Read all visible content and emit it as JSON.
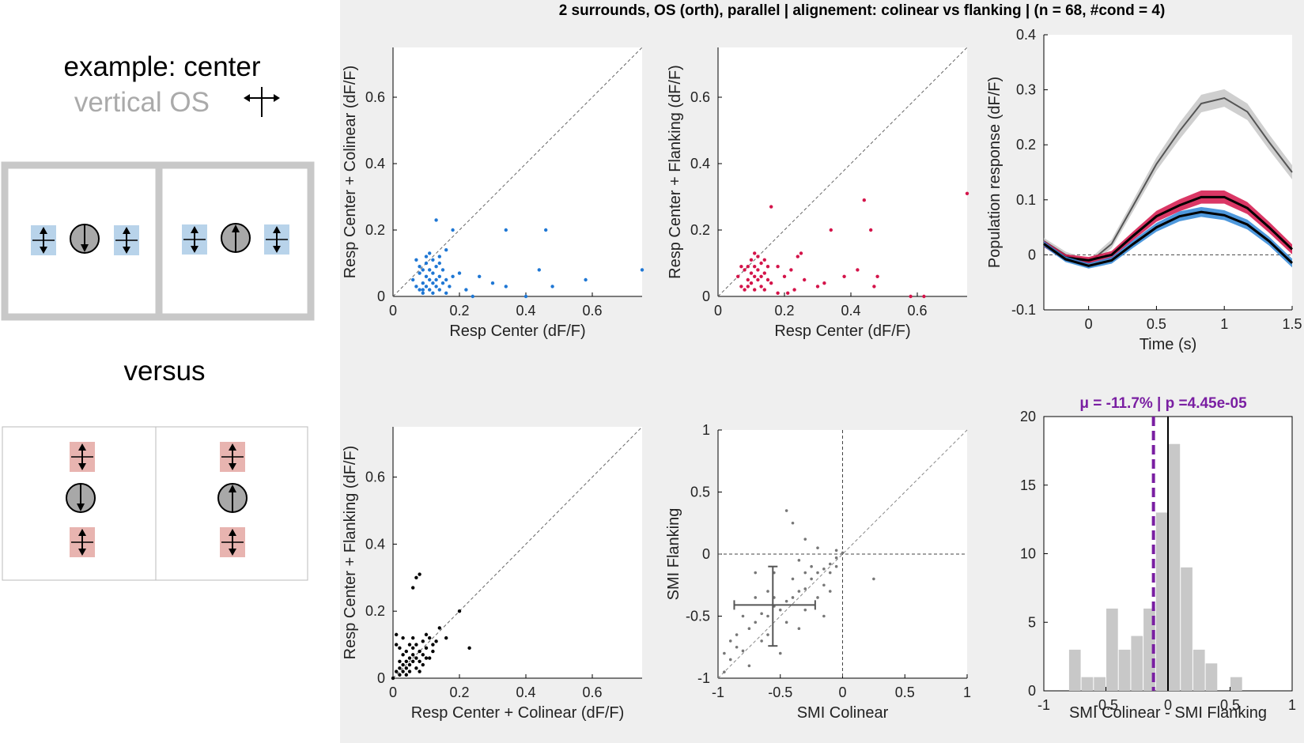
{
  "figure_title": "2 surrounds, OS (orth), parallel | alignement: colinear vs flanking | (n = 68, #cond = 4)",
  "legend": {
    "example_line1": "example: center",
    "example_line2": "vertical OS",
    "versus": "versus"
  },
  "colors": {
    "colinear": "#1f77d4",
    "flanking": "#d4144a",
    "neutral": "#000000",
    "highlight": "#7a1fa2",
    "hist_bar": "#c8c8c8",
    "blue_patch": "#b8d3ea",
    "red_patch": "#e8b4b0"
  },
  "chart_data": [
    {
      "type": "scatter",
      "id": "colinear_scatter",
      "xlabel": "Resp Center (dF/F)",
      "ylabel": "Resp Center + Colinear (dF/F)",
      "xlim": [
        0,
        0.75
      ],
      "ylim": [
        0,
        0.75
      ],
      "xticks": [
        "0",
        "0.2",
        "0.4",
        "0.6"
      ],
      "yticks": [
        "0",
        "0.2",
        "0.4",
        "0.6"
      ],
      "diagonal": true,
      "points": [
        [
          0.06,
          0.05
        ],
        [
          0.07,
          0.03
        ],
        [
          0.08,
          0.07
        ],
        [
          0.08,
          0.02
        ],
        [
          0.09,
          0.04
        ],
        [
          0.09,
          0.08
        ],
        [
          0.09,
          0.01
        ],
        [
          0.1,
          0.06
        ],
        [
          0.1,
          0.03
        ],
        [
          0.1,
          0.1
        ],
        [
          0.11,
          0.05
        ],
        [
          0.11,
          0.02
        ],
        [
          0.11,
          0.08
        ],
        [
          0.12,
          0.04
        ],
        [
          0.12,
          0.07
        ],
        [
          0.12,
          0.01
        ],
        [
          0.13,
          0.09
        ],
        [
          0.13,
          0.05
        ],
        [
          0.13,
          0.03
        ],
        [
          0.14,
          0.06
        ],
        [
          0.14,
          0.02
        ],
        [
          0.14,
          0.1
        ],
        [
          0.15,
          0.04
        ],
        [
          0.15,
          0.08
        ],
        [
          0.16,
          0.05
        ],
        [
          0.16,
          0.01
        ],
        [
          0.17,
          0.03
        ],
        [
          0.18,
          0.06
        ],
        [
          0.13,
          0.23
        ],
        [
          0.18,
          0.2
        ],
        [
          0.1,
          0.12
        ],
        [
          0.12,
          0.11
        ],
        [
          0.08,
          0.09
        ],
        [
          0.16,
          0.14
        ],
        [
          0.2,
          0.07
        ],
        [
          0.22,
          0.02
        ],
        [
          0.24,
          0.0
        ],
        [
          0.26,
          0.06
        ],
        [
          0.3,
          0.04
        ],
        [
          0.34,
          0.03
        ],
        [
          0.34,
          0.2
        ],
        [
          0.4,
          0.0
        ],
        [
          0.44,
          0.08
        ],
        [
          0.46,
          0.2
        ],
        [
          0.48,
          0.03
        ],
        [
          0.58,
          0.05
        ],
        [
          0.75,
          0.08
        ],
        [
          0.07,
          0.11
        ],
        [
          0.11,
          0.13
        ],
        [
          0.09,
          0.02
        ],
        [
          0.14,
          0.12
        ]
      ]
    },
    {
      "type": "scatter",
      "id": "flanking_scatter",
      "xlabel": "Resp Center (dF/F)",
      "ylabel": "Resp Center + Flanking (dF/F)",
      "xlim": [
        0,
        0.75
      ],
      "ylim": [
        0,
        0.75
      ],
      "xticks": [
        "0",
        "0.2",
        "0.4",
        "0.6"
      ],
      "yticks": [
        "0",
        "0.2",
        "0.4",
        "0.6"
      ],
      "diagonal": true,
      "points": [
        [
          0.06,
          0.06
        ],
        [
          0.07,
          0.03
        ],
        [
          0.08,
          0.08
        ],
        [
          0.08,
          0.02
        ],
        [
          0.09,
          0.05
        ],
        [
          0.09,
          0.09
        ],
        [
          0.1,
          0.04
        ],
        [
          0.1,
          0.07
        ],
        [
          0.1,
          0.11
        ],
        [
          0.11,
          0.06
        ],
        [
          0.11,
          0.02
        ],
        [
          0.11,
          0.09
        ],
        [
          0.12,
          0.05
        ],
        [
          0.12,
          0.08
        ],
        [
          0.12,
          0.12
        ],
        [
          0.13,
          0.1
        ],
        [
          0.13,
          0.06
        ],
        [
          0.13,
          0.03
        ],
        [
          0.14,
          0.07
        ],
        [
          0.14,
          0.02
        ],
        [
          0.14,
          0.11
        ],
        [
          0.15,
          0.05
        ],
        [
          0.15,
          0.09
        ],
        [
          0.16,
          0.04
        ],
        [
          0.16,
          0.27
        ],
        [
          0.18,
          0.01
        ],
        [
          0.2,
          0.06
        ],
        [
          0.22,
          0.08
        ],
        [
          0.24,
          0.12
        ],
        [
          0.25,
          0.13
        ],
        [
          0.26,
          0.05
        ],
        [
          0.3,
          0.03
        ],
        [
          0.32,
          0.04
        ],
        [
          0.34,
          0.2
        ],
        [
          0.38,
          0.06
        ],
        [
          0.42,
          0.08
        ],
        [
          0.44,
          0.29
        ],
        [
          0.46,
          0.2
        ],
        [
          0.48,
          0.06
        ],
        [
          0.47,
          0.03
        ],
        [
          0.58,
          0.0
        ],
        [
          0.62,
          0.0
        ],
        [
          0.75,
          0.31
        ],
        [
          0.07,
          0.09
        ],
        [
          0.11,
          0.13
        ],
        [
          0.09,
          0.03
        ],
        [
          0.18,
          0.09
        ],
        [
          0.21,
          0.01
        ],
        [
          0.23,
          0.02
        ]
      ]
    },
    {
      "type": "line",
      "id": "population_timecourse",
      "xlabel": "Time (s)",
      "ylabel": "Population response (dF/F)",
      "xlim": [
        -0.33,
        1.5
      ],
      "ylim": [
        -0.1,
        0.4
      ],
      "xticks": [
        "0",
        "0.5",
        "1",
        "1.5"
      ],
      "yticks": [
        "-0.1",
        "0",
        "0.1",
        "0.2",
        "0.3",
        "0.4"
      ],
      "x": [
        -0.33,
        -0.17,
        0,
        0.17,
        0.33,
        0.5,
        0.67,
        0.83,
        1,
        1.17,
        1.33,
        1.5
      ],
      "series": [
        {
          "color": "gray",
          "values": [
            0.025,
            0.0,
            -0.015,
            0.02,
            0.09,
            0.165,
            0.225,
            0.275,
            0.285,
            0.26,
            0.205,
            0.15
          ],
          "sem": [
            0.006,
            0.006,
            0.006,
            0.008,
            0.01,
            0.012,
            0.015,
            0.016,
            0.016,
            0.015,
            0.014,
            0.013
          ]
        },
        {
          "color": "red",
          "values": [
            0.02,
            -0.005,
            -0.01,
            0.0,
            0.035,
            0.07,
            0.09,
            0.105,
            0.105,
            0.085,
            0.05,
            0.01
          ],
          "sem": [
            0.006,
            0.006,
            0.006,
            0.007,
            0.008,
            0.01,
            0.011,
            0.012,
            0.012,
            0.011,
            0.01,
            0.009
          ]
        },
        {
          "color": "blue",
          "values": [
            0.02,
            -0.008,
            -0.02,
            -0.01,
            0.02,
            0.05,
            0.07,
            0.078,
            0.072,
            0.055,
            0.025,
            -0.015
          ],
          "sem": [
            0.005,
            0.005,
            0.005,
            0.006,
            0.007,
            0.008,
            0.009,
            0.009,
            0.009,
            0.009,
            0.008,
            0.008
          ]
        }
      ],
      "zero_line": true
    },
    {
      "type": "scatter",
      "id": "colinear_vs_flanking",
      "xlabel": "Resp Center + Colinear (dF/F)",
      "ylabel": "Resp Center + Flanking (dF/F)",
      "xlim": [
        0,
        0.75
      ],
      "ylim": [
        0,
        0.75
      ],
      "xticks": [
        "0",
        "0.2",
        "0.4",
        "0.6"
      ],
      "yticks": [
        "0",
        "0.2",
        "0.4",
        "0.6"
      ],
      "diagonal": true,
      "points": [
        [
          0.0,
          0.0
        ],
        [
          0.01,
          0.02
        ],
        [
          0.01,
          0.13
        ],
        [
          0.01,
          0.1
        ],
        [
          0.02,
          0.03
        ],
        [
          0.02,
          0.05
        ],
        [
          0.02,
          0.01
        ],
        [
          0.03,
          0.04
        ],
        [
          0.03,
          0.07
        ],
        [
          0.03,
          0.02
        ],
        [
          0.04,
          0.05
        ],
        [
          0.04,
          0.03
        ],
        [
          0.04,
          0.08
        ],
        [
          0.05,
          0.04
        ],
        [
          0.05,
          0.06
        ],
        [
          0.05,
          0.02
        ],
        [
          0.06,
          0.07
        ],
        [
          0.06,
          0.05
        ],
        [
          0.06,
          0.09
        ],
        [
          0.07,
          0.06
        ],
        [
          0.07,
          0.1
        ],
        [
          0.07,
          0.03
        ],
        [
          0.08,
          0.08
        ],
        [
          0.08,
          0.05
        ],
        [
          0.09,
          0.07
        ],
        [
          0.09,
          0.11
        ],
        [
          0.1,
          0.06
        ],
        [
          0.1,
          0.09
        ],
        [
          0.11,
          0.12
        ],
        [
          0.12,
          0.08
        ],
        [
          0.13,
          0.11
        ],
        [
          0.14,
          0.15
        ],
        [
          0.16,
          0.12
        ],
        [
          0.2,
          0.2
        ],
        [
          0.23,
          0.09
        ],
        [
          0.07,
          0.3
        ],
        [
          0.08,
          0.31
        ],
        [
          0.06,
          0.27
        ],
        [
          0.02,
          0.09
        ],
        [
          0.03,
          0.12
        ],
        [
          0.04,
          0.01
        ],
        [
          0.05,
          0.1
        ],
        [
          0.08,
          0.02
        ],
        [
          0.09,
          0.04
        ],
        [
          0.11,
          0.06
        ],
        [
          0.06,
          0.12
        ],
        [
          0.1,
          0.13
        ],
        [
          0.12,
          0.1
        ]
      ]
    },
    {
      "type": "scatter",
      "id": "smi_scatter",
      "xlabel": "SMI Colinear",
      "ylabel": "SMI Flanking",
      "xlim": [
        -1,
        1
      ],
      "ylim": [
        -1,
        1
      ],
      "xticks": [
        "-1",
        "-0.5",
        "0",
        "0.5",
        "1"
      ],
      "yticks": [
        "-1",
        "-0.5",
        "0",
        "0.5",
        "1"
      ],
      "diagonal": true,
      "zero_lines": true,
      "mean": [
        -0.56,
        -0.41
      ],
      "errorbar_x": [
        -0.87,
        -0.22
      ],
      "errorbar_y": [
        -0.74,
        -0.1
      ],
      "points": [
        [
          -0.95,
          -0.95
        ],
        [
          -0.9,
          -0.85
        ],
        [
          -0.85,
          -0.75
        ],
        [
          -0.8,
          -0.78
        ],
        [
          -0.75,
          -0.6
        ],
        [
          -0.7,
          -0.55
        ],
        [
          -0.65,
          -0.48
        ],
        [
          -0.6,
          -0.5
        ],
        [
          -0.55,
          -0.42
        ],
        [
          -0.5,
          -0.45
        ],
        [
          -0.45,
          -0.38
        ],
        [
          -0.4,
          -0.35
        ],
        [
          -0.35,
          -0.3
        ],
        [
          -0.3,
          -0.28
        ],
        [
          -0.25,
          -0.2
        ],
        [
          -0.2,
          -0.15
        ],
        [
          -0.15,
          -0.12
        ],
        [
          -0.1,
          -0.08
        ],
        [
          -0.05,
          -0.03
        ],
        [
          0.0,
          0.01
        ],
        [
          -0.05,
          0.03
        ],
        [
          0.25,
          -0.2
        ],
        [
          -0.4,
          0.25
        ],
        [
          -0.45,
          0.35
        ],
        [
          -0.3,
          0.12
        ],
        [
          -0.7,
          -0.15
        ],
        [
          -0.6,
          -0.3
        ],
        [
          -0.8,
          -0.5
        ],
        [
          -0.85,
          -0.65
        ],
        [
          -0.65,
          -0.7
        ],
        [
          -0.55,
          -0.15
        ],
        [
          -0.35,
          -0.05
        ],
        [
          -0.2,
          -0.35
        ],
        [
          -0.1,
          -0.15
        ],
        [
          -0.25,
          -0.1
        ],
        [
          -0.75,
          -0.9
        ],
        [
          -0.5,
          -0.8
        ],
        [
          -0.3,
          -0.45
        ],
        [
          -0.15,
          -0.25
        ],
        [
          -0.05,
          -0.1
        ],
        [
          -0.9,
          -0.7
        ],
        [
          -0.45,
          -0.55
        ],
        [
          -0.6,
          -0.65
        ],
        [
          -0.4,
          -0.2
        ],
        [
          -0.35,
          -0.6
        ],
        [
          -0.2,
          0.05
        ],
        [
          -0.1,
          -0.3
        ],
        [
          -0.55,
          -0.35
        ],
        [
          -0.3,
          -0.15
        ],
        [
          -0.7,
          -0.35
        ],
        [
          -0.95,
          -0.8
        ],
        [
          -0.15,
          -0.5
        ]
      ]
    },
    {
      "type": "bar",
      "id": "smi_difference_hist",
      "title": "μ = -11.7% | p =4.45e-05",
      "xlabel": "SMI Colinear - SMI Flanking",
      "xlim": [
        -1,
        1
      ],
      "ylim": [
        0,
        20
      ],
      "xticks": [
        "-1",
        "-0.5",
        "0",
        "0.5",
        "1"
      ],
      "yticks": [
        "0",
        "5",
        "10",
        "15",
        "20"
      ],
      "bin_edges": [
        -0.8,
        -0.7,
        -0.6,
        -0.5,
        -0.4,
        -0.3,
        -0.2,
        -0.1,
        0.0,
        0.1,
        0.2,
        0.3,
        0.4,
        0.5,
        0.6
      ],
      "values": [
        3,
        1,
        1,
        6,
        3,
        4,
        6,
        13,
        18,
        9,
        3,
        2,
        0,
        1
      ],
      "mean_line": -0.117,
      "zero_line": 0
    }
  ]
}
